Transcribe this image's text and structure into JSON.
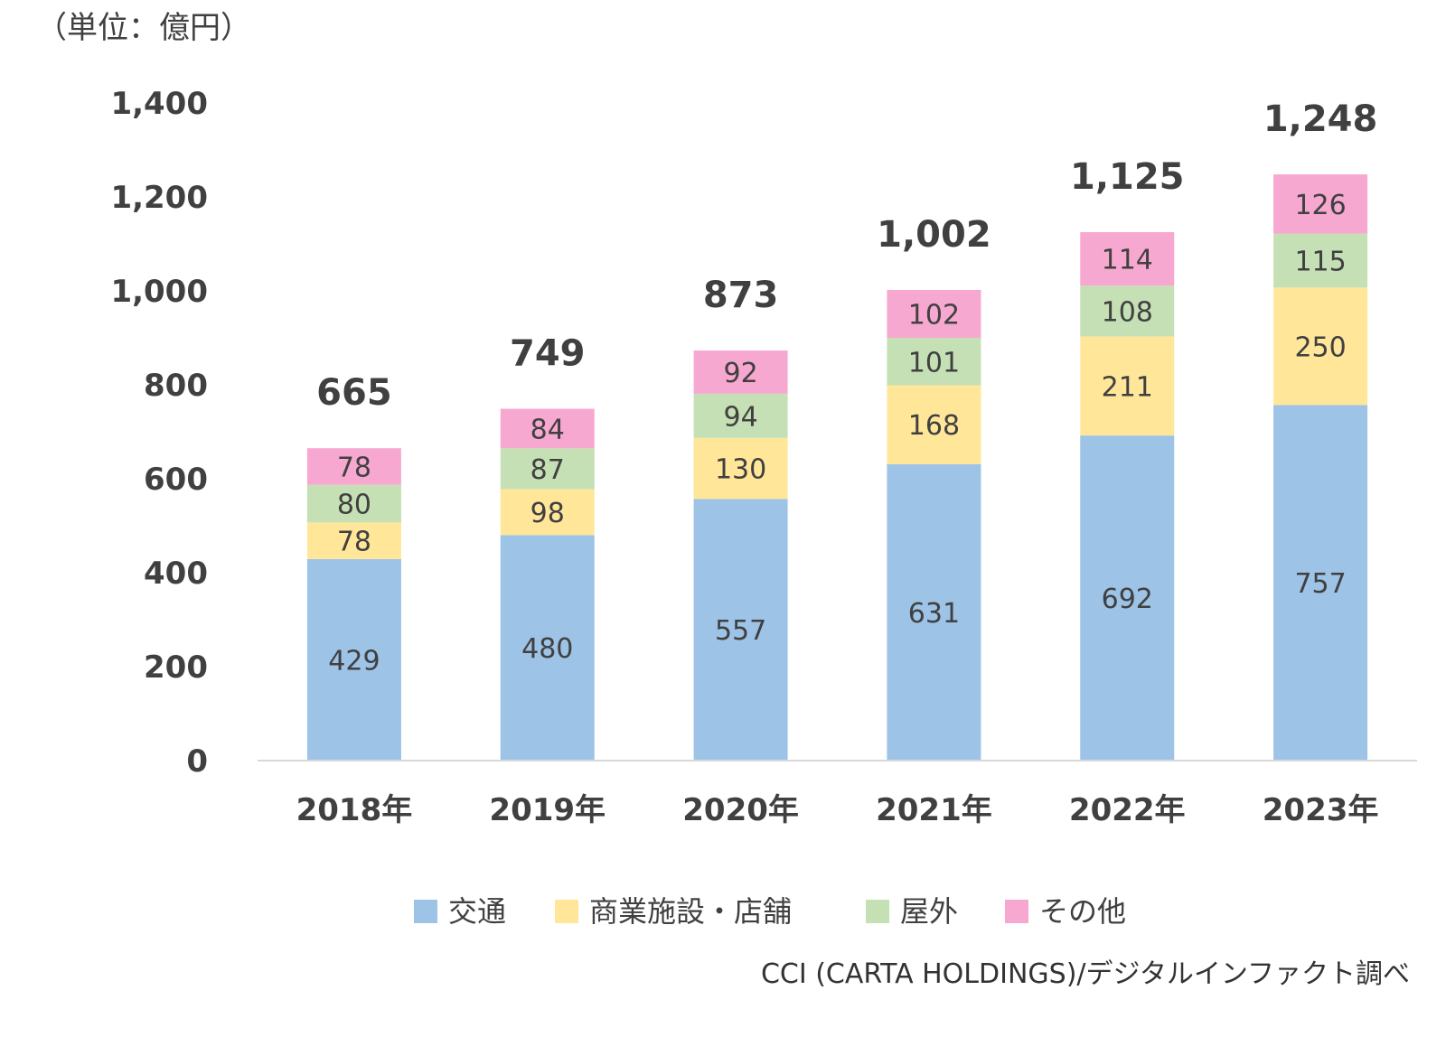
{
  "chart_data": {
    "type": "bar",
    "stacked": true,
    "unit_label": "（単位：億円）",
    "categories": [
      "2018年",
      "2019年",
      "2020年",
      "2021年",
      "2022年",
      "2023年"
    ],
    "series": [
      {
        "name": "交通",
        "color": "#9dc3e6",
        "values": [
          429,
          480,
          557,
          631,
          692,
          757
        ]
      },
      {
        "name": "商業施設・店舗",
        "color": "#ffe699",
        "values": [
          78,
          98,
          130,
          168,
          211,
          250
        ]
      },
      {
        "name": "屋外",
        "color": "#c5e0b4",
        "values": [
          80,
          87,
          94,
          101,
          108,
          115
        ]
      },
      {
        "name": "その他",
        "color": "#f7a8d0",
        "values": [
          78,
          84,
          92,
          102,
          114,
          126
        ]
      }
    ],
    "totals": [
      "665",
      "749",
      "873",
      "1,002",
      "1,125",
      "1,248"
    ],
    "y_ticks": [
      "0",
      "200",
      "400",
      "600",
      "800",
      "1,000",
      "1,200",
      "1,400"
    ],
    "ylim": [
      0,
      1400
    ],
    "grid": false,
    "legend_position": "bottom",
    "source": "CCI (CARTA HOLDINGS)/デジタルインファクト調べ"
  }
}
